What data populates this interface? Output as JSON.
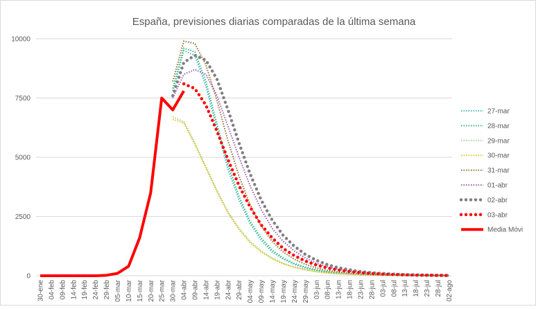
{
  "chart_data": {
    "type": "line",
    "title": "España, previsiones diarias comparadas de la última semana",
    "categories": [
      "30-ene",
      "04-feb",
      "09-feb",
      "14-feb",
      "19-feb",
      "24-feb",
      "29-feb",
      "05-mar",
      "10-mar",
      "15-mar",
      "20-mar",
      "25-mar",
      "30-mar",
      "04-abr",
      "09-abr",
      "14-abr",
      "19-abr",
      "24-abr",
      "29-abr",
      "04-may",
      "09-may",
      "14-may",
      "19-may",
      "24-may",
      "29-may",
      "03-jun",
      "08-jun",
      "13-jun",
      "18-jun",
      "23-jun",
      "28-jun",
      "03-jul",
      "08-jul",
      "13-jul",
      "18-jul",
      "23-jul",
      "28-jul",
      "02-ago"
    ],
    "ylim": [
      0,
      10000
    ],
    "yticks": [
      0,
      2500,
      5000,
      7500,
      10000
    ],
    "grid": true,
    "legend": "right",
    "series": [
      {
        "name": "27-mar",
        "color": "#3fb8c8",
        "style": "dotted",
        "values": [
          null,
          null,
          null,
          null,
          null,
          null,
          null,
          null,
          null,
          null,
          null,
          null,
          7800,
          9500,
          9300,
          8000,
          6200,
          4500,
          3200,
          2200,
          1500,
          1000,
          700,
          480,
          330,
          230,
          160,
          110,
          75,
          50,
          35,
          25,
          17,
          12,
          8,
          5,
          4,
          3
        ]
      },
      {
        "name": "28-mar",
        "color": "#2eb872",
        "style": "dotted",
        "values": [
          null,
          null,
          null,
          null,
          null,
          null,
          null,
          null,
          null,
          null,
          null,
          null,
          7900,
          9600,
          9450,
          8200,
          6400,
          4700,
          3350,
          2300,
          1600,
          1080,
          750,
          520,
          360,
          250,
          170,
          120,
          80,
          55,
          38,
          27,
          18,
          13,
          9,
          6,
          4,
          3
        ]
      },
      {
        "name": "29-mar",
        "color": "#a9d18e",
        "style": "dotted",
        "values": [
          null,
          null,
          null,
          null,
          null,
          null,
          null,
          null,
          null,
          null,
          null,
          null,
          6700,
          6500,
          5600,
          4600,
          3600,
          2700,
          2000,
          1450,
          1050,
          750,
          520,
          370,
          260,
          180,
          120,
          85,
          60,
          42,
          30,
          21,
          15,
          10,
          7,
          5,
          3,
          2
        ]
      },
      {
        "name": "30-mar",
        "color": "#e8c21e",
        "style": "dotted",
        "values": [
          null,
          null,
          null,
          null,
          null,
          null,
          null,
          null,
          null,
          null,
          null,
          null,
          6600,
          6450,
          5550,
          4550,
          3550,
          2650,
          1950,
          1400,
          1000,
          720,
          500,
          350,
          250,
          170,
          115,
          80,
          57,
          40,
          28,
          20,
          14,
          10,
          7,
          5,
          3,
          2
        ]
      },
      {
        "name": "31-mar",
        "color": "#8c6d31",
        "style": "dotted",
        "values": [
          null,
          null,
          null,
          null,
          null,
          null,
          null,
          null,
          null,
          null,
          null,
          null,
          8200,
          9900,
          9800,
          8900,
          7400,
          5700,
          4200,
          3000,
          2100,
          1450,
          1000,
          700,
          480,
          330,
          230,
          160,
          110,
          75,
          52,
          36,
          25,
          17,
          12,
          8,
          6,
          4
        ]
      },
      {
        "name": "01-abr",
        "color": "#9b59b6",
        "style": "dotted",
        "values": [
          null,
          null,
          null,
          null,
          null,
          null,
          null,
          null,
          null,
          null,
          null,
          null,
          7500,
          8500,
          8700,
          8500,
          7600,
          6300,
          5000,
          3800,
          2800,
          2000,
          1450,
          1050,
          750,
          530,
          380,
          270,
          190,
          135,
          95,
          67,
          47,
          33,
          23,
          16,
          11,
          8
        ]
      },
      {
        "name": "02-abr",
        "color": "#808080",
        "style": "dots",
        "values": [
          null,
          null,
          null,
          null,
          null,
          null,
          null,
          null,
          null,
          null,
          null,
          null,
          7600,
          9000,
          9300,
          9100,
          8300,
          7000,
          5600,
          4300,
          3200,
          2350,
          1700,
          1250,
          900,
          650,
          470,
          340,
          250,
          180,
          130,
          95,
          68,
          49,
          35,
          25,
          18,
          13
        ]
      },
      {
        "name": "03-abr",
        "color": "#ff0000",
        "style": "dots",
        "values": [
          null,
          null,
          null,
          null,
          null,
          null,
          null,
          null,
          null,
          null,
          null,
          null,
          null,
          8100,
          7900,
          7200,
          6100,
          4900,
          3800,
          2900,
          2150,
          1600,
          1150,
          850,
          620,
          450,
          330,
          240,
          175,
          130,
          95,
          70,
          50,
          37,
          27,
          20,
          14,
          10
        ]
      },
      {
        "name": "Media Móvi",
        "color": "#ff0000",
        "style": "solid",
        "values": [
          0,
          0,
          0,
          0,
          0,
          0,
          20,
          100,
          400,
          1600,
          3500,
          7500,
          7000,
          7800,
          null,
          null,
          null,
          null,
          null,
          null,
          null,
          null,
          null,
          null,
          null,
          null,
          null,
          null,
          null,
          null,
          null,
          null,
          null,
          null,
          null,
          null,
          null,
          null
        ]
      }
    ]
  }
}
